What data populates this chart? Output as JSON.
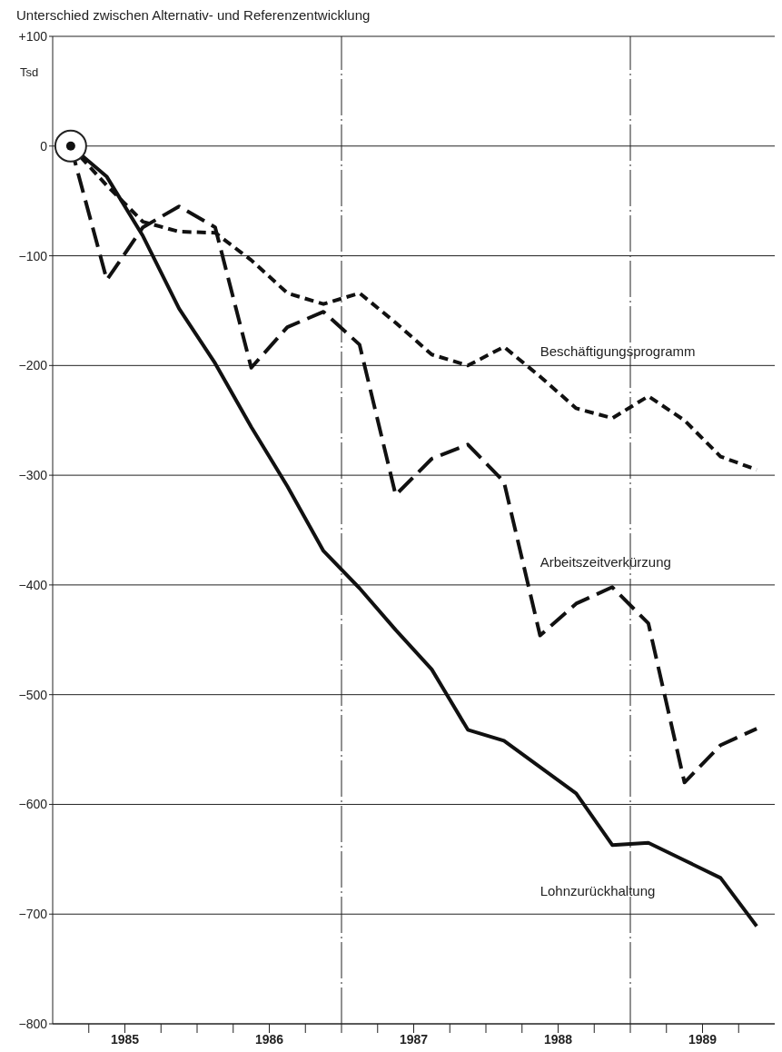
{
  "chart_data": {
    "type": "line",
    "title": "Unterschied zwischen Alternativ- und Referenzentwicklung",
    "ylabel": "Tsd",
    "x": [
      1985.125,
      1985.375,
      1985.625,
      1985.875,
      1986.125,
      1986.375,
      1986.625,
      1986.875,
      1987.125,
      1987.375,
      1987.625,
      1987.875,
      1988.125,
      1988.375,
      1988.625,
      1988.875,
      1989.125,
      1989.375,
      1989.625,
      1989.875
    ],
    "series": [
      {
        "name": "Beschäftigungsprogramm",
        "color": "#111111",
        "line_style": "dashed",
        "values": [
          0,
          -36,
          -69,
          -78,
          -79,
          -104,
          -134,
          -144,
          -134,
          -161,
          -190,
          -200,
          -183,
          -210,
          -239,
          -248,
          -228,
          -250,
          -283,
          -295
        ]
      },
      {
        "name": "Arbeitszeitverkürzung",
        "color": "#111111",
        "line_style": "dashed",
        "values": [
          0,
          -122,
          -74,
          -55,
          -74,
          -202,
          -165,
          -151,
          -181,
          -318,
          -285,
          -272,
          -306,
          -446,
          -417,
          -402,
          -435,
          -580,
          -546,
          -531
        ]
      },
      {
        "name": "Lohnzurückhaltung",
        "color": "#111111",
        "line_style": "solid",
        "values": [
          0,
          -28,
          -82,
          -148,
          -198,
          -256,
          -310,
          -369,
          -403,
          -441,
          -477,
          -532,
          -542,
          -566,
          -590,
          -637,
          -635,
          -651,
          -667,
          -711
        ]
      }
    ],
    "xlim": [
      1985,
      1990
    ],
    "xticks": [
      {
        "value": 1985.25,
        "label": null
      },
      {
        "value": 1985.5,
        "label": "1985"
      },
      {
        "value": 1985.75,
        "label": null
      },
      {
        "value": 1986,
        "label": null
      },
      {
        "value": 1986.25,
        "label": null
      },
      {
        "value": 1986.5,
        "label": "1986"
      },
      {
        "value": 1986.75,
        "label": null
      },
      {
        "value": 1987,
        "label": null
      },
      {
        "value": 1987.25,
        "label": null
      },
      {
        "value": 1987.5,
        "label": "1987"
      },
      {
        "value": 1987.75,
        "label": null
      },
      {
        "value": 1988,
        "label": null
      },
      {
        "value": 1988.25,
        "label": null
      },
      {
        "value": 1988.5,
        "label": "1988"
      },
      {
        "value": 1988.75,
        "label": null
      },
      {
        "value": 1989,
        "label": null
      },
      {
        "value": 1989.25,
        "label": null
      },
      {
        "value": 1989.5,
        "label": "1989"
      },
      {
        "value": 1989.75,
        "label": null
      }
    ],
    "ylim": [
      -800,
      100
    ],
    "yticks": [
      {
        "value": 100,
        "label": "+100"
      },
      0,
      {
        "value": -100,
        "label": "−100"
      },
      {
        "value": -200,
        "label": "−200"
      },
      {
        "value": -300,
        "label": "−300"
      },
      {
        "value": -400,
        "label": "−400"
      },
      {
        "value": -500,
        "label": "−500"
      },
      {
        "value": -600,
        "label": "−600"
      },
      {
        "value": -700,
        "label": "−700"
      },
      {
        "value": -800,
        "label": "−800"
      }
    ],
    "ref_lines": [
      {
        "axis": "x",
        "value": 1987,
        "line_style": "dashed"
      },
      {
        "axis": "x",
        "value": 1989,
        "line_style": "dashed"
      }
    ],
    "grid": "y",
    "marker": "none",
    "legend": false
  }
}
